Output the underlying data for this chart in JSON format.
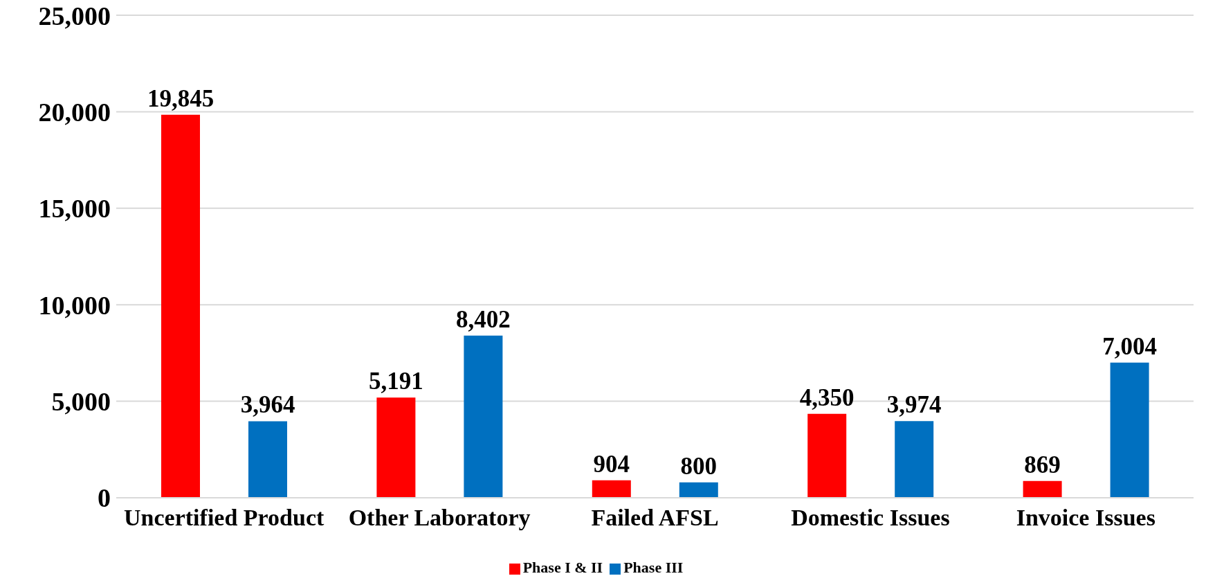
{
  "chart_data": {
    "type": "bar",
    "categories": [
      "Uncertified Product",
      "Other Laboratory",
      "Failed AFSL",
      "Domestic Issues",
      "Invoice Issues"
    ],
    "series": [
      {
        "name": "Phase I & II",
        "color": "#ff0000",
        "values": [
          19845,
          5191,
          904,
          4350,
          869
        ],
        "value_labels": [
          "19,845",
          "5,191",
          "904",
          "4,350",
          "869"
        ]
      },
      {
        "name": "Phase III",
        "color": "#0070c0",
        "values": [
          3964,
          8402,
          800,
          3974,
          7004
        ],
        "value_labels": [
          "3,964",
          "8,402",
          "800",
          "3,974",
          "7,004"
        ]
      }
    ],
    "ylim": [
      0,
      25000
    ],
    "yticks": [
      {
        "value": 0,
        "label": "0"
      },
      {
        "value": 5000,
        "label": "5,000"
      },
      {
        "value": 10000,
        "label": "10,000"
      },
      {
        "value": 15000,
        "label": "15,000"
      },
      {
        "value": 20000,
        "label": "20,000"
      },
      {
        "value": 25000,
        "label": "25,000"
      }
    ],
    "grid": "y",
    "legend": "bottom"
  }
}
